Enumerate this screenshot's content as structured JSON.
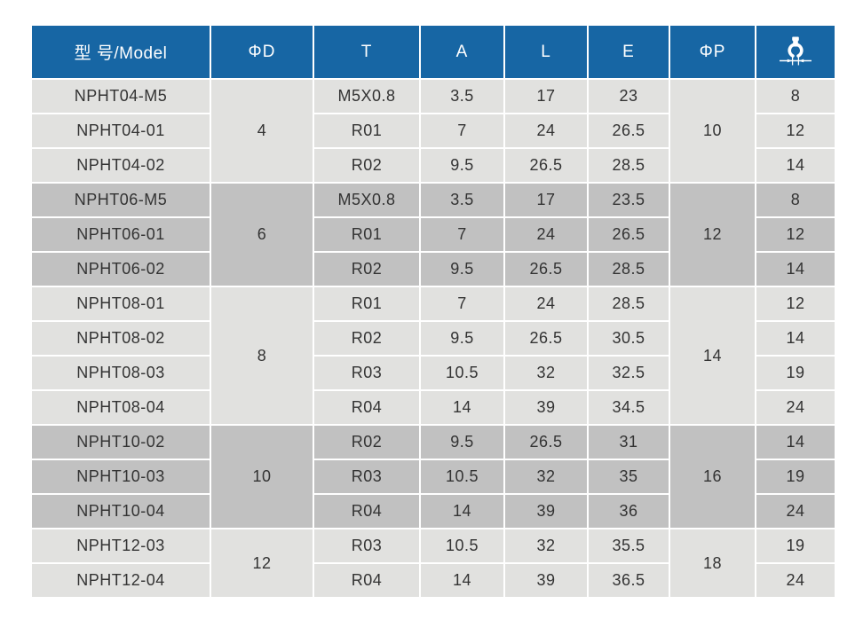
{
  "colors": {
    "page_bg": "#ffffff",
    "header_bg": "#1766a4",
    "header_text": "#ffffff",
    "row_light": "#e1e1df",
    "row_dark": "#c1c1c1",
    "cell_text": "#333333",
    "divider": "#ffffff"
  },
  "table": {
    "columns": [
      {
        "key": "model",
        "label": "型 号/Model"
      },
      {
        "key": "phi_d",
        "label": "ΦD"
      },
      {
        "key": "t",
        "label": "T"
      },
      {
        "key": "a",
        "label": "A"
      },
      {
        "key": "l",
        "label": "L"
      },
      {
        "key": "e",
        "label": "E"
      },
      {
        "key": "phi_p",
        "label": "ΦP"
      },
      {
        "key": "wrench",
        "label": "",
        "icon": "wrench-size-icon"
      }
    ],
    "groups": [
      {
        "shade": "light",
        "phi_d": "4",
        "phi_p": "10",
        "rows": [
          {
            "model": "NPHT04-M5",
            "t": "M5X0.8",
            "a": "3.5",
            "l": "17",
            "e": "23",
            "wrench": "8"
          },
          {
            "model": "NPHT04-01",
            "t": "R01",
            "a": "7",
            "l": "24",
            "e": "26.5",
            "wrench": "12"
          },
          {
            "model": "NPHT04-02",
            "t": "R02",
            "a": "9.5",
            "l": "26.5",
            "e": "28.5",
            "wrench": "14"
          }
        ]
      },
      {
        "shade": "dark",
        "phi_d": "6",
        "phi_p": "12",
        "rows": [
          {
            "model": "NPHT06-M5",
            "t": "M5X0.8",
            "a": "3.5",
            "l": "17",
            "e": "23.5",
            "wrench": "8"
          },
          {
            "model": "NPHT06-01",
            "t": "R01",
            "a": "7",
            "l": "24",
            "e": "26.5",
            "wrench": "12"
          },
          {
            "model": "NPHT06-02",
            "t": "R02",
            "a": "9.5",
            "l": "26.5",
            "e": "28.5",
            "wrench": "14"
          }
        ]
      },
      {
        "shade": "light",
        "phi_d": "8",
        "phi_p": "14",
        "rows": [
          {
            "model": "NPHT08-01",
            "t": "R01",
            "a": "7",
            "l": "24",
            "e": "28.5",
            "wrench": "12"
          },
          {
            "model": "NPHT08-02",
            "t": "R02",
            "a": "9.5",
            "l": "26.5",
            "e": "30.5",
            "wrench": "14"
          },
          {
            "model": "NPHT08-03",
            "t": "R03",
            "a": "10.5",
            "l": "32",
            "e": "32.5",
            "wrench": "19"
          },
          {
            "model": "NPHT08-04",
            "t": "R04",
            "a": "14",
            "l": "39",
            "e": "34.5",
            "wrench": "24"
          }
        ]
      },
      {
        "shade": "dark",
        "phi_d": "10",
        "phi_p": "16",
        "rows": [
          {
            "model": "NPHT10-02",
            "t": "R02",
            "a": "9.5",
            "l": "26.5",
            "e": "31",
            "wrench": "14"
          },
          {
            "model": "NPHT10-03",
            "t": "R03",
            "a": "10.5",
            "l": "32",
            "e": "35",
            "wrench": "19"
          },
          {
            "model": "NPHT10-04",
            "t": "R04",
            "a": "14",
            "l": "39",
            "e": "36",
            "wrench": "24"
          }
        ]
      },
      {
        "shade": "light",
        "phi_d": "12",
        "phi_p": "18",
        "rows": [
          {
            "model": "NPHT12-03",
            "t": "R03",
            "a": "10.5",
            "l": "32",
            "e": "35.5",
            "wrench": "19"
          },
          {
            "model": "NPHT12-04",
            "t": "R04",
            "a": "14",
            "l": "39",
            "e": "36.5",
            "wrench": "24"
          }
        ]
      }
    ]
  }
}
